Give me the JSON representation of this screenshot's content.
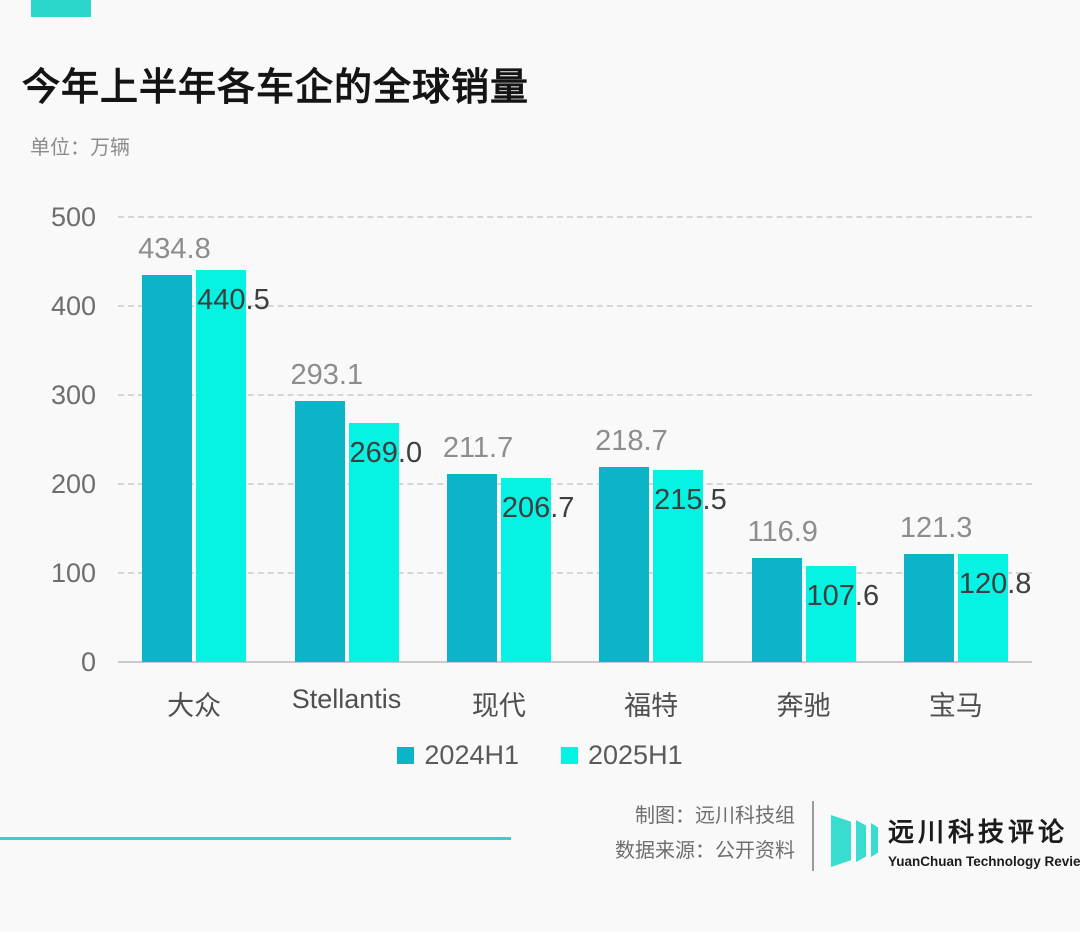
{
  "header": {
    "unit_label": "单位：万辆"
  },
  "chart_data": {
    "type": "bar",
    "title": "今年上半年各车企的全球销量",
    "ylabel": "万辆",
    "xlabel": "",
    "categories": [
      "大众",
      "Stellantis",
      "现代",
      "福特",
      "奔驰",
      "宝马"
    ],
    "series": [
      {
        "name": "2024H1",
        "color": "#0cb4c8",
        "values": [
          434.8,
          293.1,
          211.7,
          218.7,
          116.9,
          121.3
        ]
      },
      {
        "name": "2025H1",
        "color": "#06f2e2",
        "values": [
          440.5,
          269.0,
          206.7,
          215.5,
          107.6,
          120.8
        ]
      }
    ],
    "ylim": [
      0,
      500
    ],
    "yticks": [
      0,
      100,
      200,
      300,
      400,
      500
    ],
    "grid": true,
    "legend_position": "bottom"
  },
  "footer": {
    "credit_line1": "制图：远川科技组",
    "credit_line2": "数据来源：公开资料",
    "logo_title": "远川科技评论",
    "logo_subtitle": "YuanChuan Technology Review"
  },
  "colors": {
    "accent": "#2bd6cb",
    "background": "#f9f9f9",
    "series_2024": "#0cb4c8",
    "series_2025": "#06f2e2"
  }
}
